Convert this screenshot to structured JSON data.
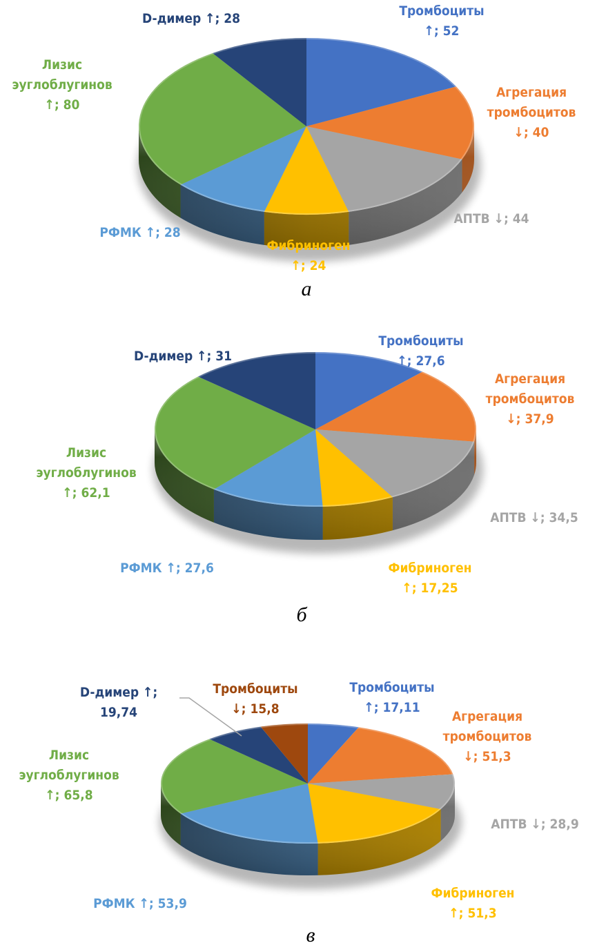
{
  "colors": {
    "Тромбоциты ↑": "#4472C4",
    "Агрегация тромбоцитов ↓": "#ED7D31",
    "АПТВ ↓": "#A5A5A5",
    "Фибриноген ↑": "#FFC000",
    "РФМК ↑": "#5B9BD5",
    "Лизис эуглоблугинов ↑": "#70AD47",
    "D-димер ↑": "#264478",
    "Тромбоциты ↓": "#9E480E"
  },
  "chart_data": [
    {
      "type": "pie",
      "style": "3d",
      "panel": "а",
      "title": "",
      "categories": [
        "Тромбоциты",
        "Агрегация тромбоцитов",
        "АПТВ",
        "Фибриноген",
        "РФМК",
        "Лизис эуглоблугинов",
        "D-димер"
      ],
      "directions": [
        "↑",
        "↓",
        "↓",
        "↑",
        "↑",
        "↑",
        "↑"
      ],
      "values": [
        52,
        40,
        44,
        24,
        28,
        80,
        28
      ],
      "value_labels": [
        "52",
        "40",
        "44",
        "24",
        "28",
        "80",
        "28"
      ],
      "label_lines": [
        [
          "Тромбоциты",
          "↑; 52"
        ],
        [
          "Агрегация",
          "тромбоцитов",
          "↓; 40"
        ],
        [
          "АПТВ ↓; 44"
        ],
        [
          "Фибриноген",
          "↑; 24"
        ],
        [
          "РФМК ↑; 28"
        ],
        [
          "Лизис",
          "эуглоблугинов",
          "↑; 80"
        ],
        [
          "D-димер ↑; 28"
        ]
      ],
      "color_keys": [
        "Тромбоциты ↑",
        "Агрегация тромбоцитов ↓",
        "АПТВ ↓",
        "Фибриноген ↑",
        "РФМК ↑",
        "Лизис эуглоблугинов ↑",
        "D-димер ↑"
      ]
    },
    {
      "type": "pie",
      "style": "3d",
      "panel": "б",
      "title": "",
      "categories": [
        "Тромбоциты",
        "Агрегация тромбоцитов",
        "АПТВ",
        "Фибриноген",
        "РФМК",
        "Лизис эуглоблугинов",
        "D-димер"
      ],
      "directions": [
        "↑",
        "↓",
        "↓",
        "↑",
        "↑",
        "↑",
        "↑"
      ],
      "values": [
        27.6,
        37.9,
        34.5,
        17.25,
        27.6,
        62.1,
        31
      ],
      "value_labels": [
        "27,6",
        "37,9",
        "34,5",
        "17,25",
        "27,6",
        "62,1",
        "31"
      ],
      "label_lines": [
        [
          "Тромбоциты",
          "↑; 27,6"
        ],
        [
          "Агрегация",
          "тромбоцитов",
          "↓; 37,9"
        ],
        [
          "АПТВ ↓; 34,5"
        ],
        [
          "Фибриноген",
          "↑; 17,25"
        ],
        [
          "РФМК ↑; 27,6"
        ],
        [
          "Лизис",
          "эуглоблугинов",
          "↑; 62,1"
        ],
        [
          "D-димер ↑; 31"
        ]
      ],
      "color_keys": [
        "Тромбоциты ↑",
        "Агрегация тромбоцитов ↓",
        "АПТВ ↓",
        "Фибриноген ↑",
        "РФМК ↑",
        "Лизис эуглоблугинов ↑",
        "D-димер ↑"
      ]
    },
    {
      "type": "pie",
      "style": "3d",
      "panel": "в",
      "title": "",
      "categories": [
        "Тромбоциты",
        "Агрегация тромбоцитов",
        "АПТВ",
        "Фибриноген",
        "РФМК",
        "Лизис эуглоблугинов",
        "D-димер",
        "Тромбоциты"
      ],
      "directions": [
        "↑",
        "↓",
        "↓",
        "↑",
        "↑",
        "↑",
        "↑",
        "↓"
      ],
      "values": [
        17.11,
        51.3,
        28.9,
        51.3,
        53.9,
        65.8,
        19.74,
        15.8
      ],
      "value_labels": [
        "17,11",
        "51,3",
        "28,9",
        "51,3",
        "53,9",
        "65,8",
        "19,74",
        "15,8"
      ],
      "label_lines": [
        [
          "Тромбоциты",
          "↑; 17,11"
        ],
        [
          "Агрегация",
          "тромбоцитов",
          "↓; 51,3"
        ],
        [
          "АПТВ ↓; 28,9"
        ],
        [
          "Фибриноген",
          "↑; 51,3"
        ],
        [
          "РФМК ↑; 53,9"
        ],
        [
          "Лизис",
          "эуглоблугинов",
          "↑; 65,8"
        ],
        [
          "D-димер ↑;",
          "19,74"
        ],
        [
          "Тромбоциты",
          "↓; 15,8"
        ]
      ],
      "color_keys": [
        "Тромбоциты ↑",
        "Агрегация тромбоцитов ↓",
        "АПТВ ↓",
        "Фибриноген ↑",
        "РФМК ↑",
        "Лизис эуглоблугинов ↑",
        "D-димер ↑",
        "Тромбоциты ↓"
      ]
    }
  ]
}
